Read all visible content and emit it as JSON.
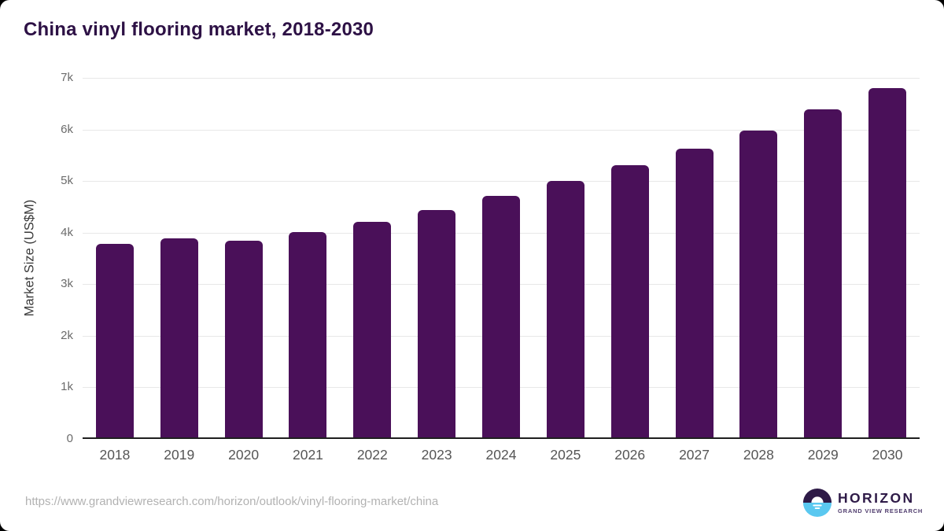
{
  "page_title": "China vinyl flooring market, 2018-2030",
  "chart_data": {
    "type": "bar",
    "title": "China vinyl flooring market, 2018-2030",
    "xlabel": "",
    "ylabel": "Market Size (US$M)",
    "categories": [
      "2018",
      "2019",
      "2020",
      "2021",
      "2022",
      "2023",
      "2024",
      "2025",
      "2026",
      "2027",
      "2028",
      "2029",
      "2030"
    ],
    "values": [
      3780,
      3885,
      3845,
      4005,
      4210,
      4440,
      4710,
      5000,
      5305,
      5625,
      5985,
      6385,
      6800
    ],
    "ylim": [
      0,
      7000
    ],
    "yticks": [
      {
        "value": 0,
        "label": "0"
      },
      {
        "value": 1000,
        "label": "1k"
      },
      {
        "value": 2000,
        "label": "2k"
      },
      {
        "value": 3000,
        "label": "3k"
      },
      {
        "value": 4000,
        "label": "4k"
      },
      {
        "value": 5000,
        "label": "5k"
      },
      {
        "value": 6000,
        "label": "6k"
      },
      {
        "value": 7000,
        "label": "7k"
      }
    ],
    "grid": "horizontal",
    "legend": "none"
  },
  "colors": {
    "bar": "#4a1059",
    "title": "#2d1145",
    "gridline": "#e8e8e8",
    "axis_line": "#1f1f1f",
    "tick_label": "#6b6b6b",
    "logo_dark_purple": "#2e1a47",
    "logo_light_blue": "#5ac8f0"
  },
  "footer": {
    "source_url": "https://www.grandviewresearch.com/horizon/outlook/vinyl-flooring-market/china",
    "logo": {
      "brand": "HORIZON",
      "subtitle": "GRAND VIEW RESEARCH"
    }
  }
}
